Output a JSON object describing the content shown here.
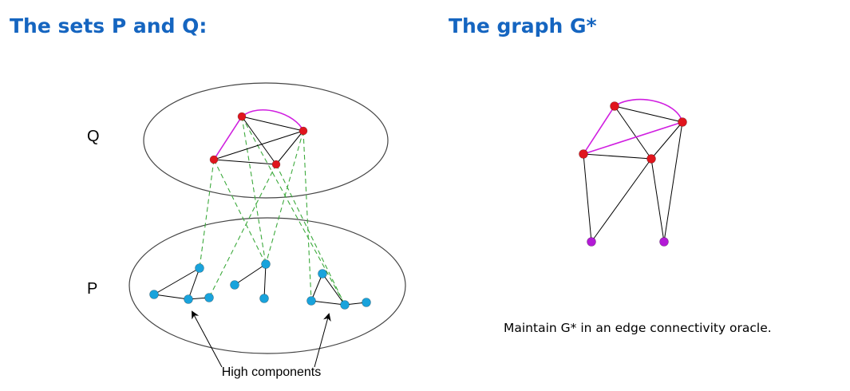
{
  "left_panel": {
    "title": "The sets P and Q:",
    "set_q_label": "Q",
    "set_p_label": "P",
    "annotation": "High components"
  },
  "right_panel": {
    "title": "The graph G*",
    "caption": "Maintain G* in an edge connectivity oracle."
  },
  "colors": {
    "title": "#1565c0",
    "q_node": "#e0151d",
    "p_node": "#19a3dc",
    "supernode": "#b31ad6",
    "magenta_edge": "#d01ee0",
    "dashed_edge": "#3daa3d",
    "black_edge": "#000000"
  },
  "diagram_left": {
    "q_nodes": [
      "q1",
      "q2",
      "q3",
      "q4"
    ],
    "q_edges": [
      [
        "q1",
        "q2"
      ],
      [
        "q1",
        "q3"
      ],
      [
        "q3",
        "q4"
      ],
      [
        "q1",
        "q4"
      ],
      [
        "q2",
        "q4"
      ],
      [
        "q2",
        "q3"
      ]
    ],
    "q_magenta_edges": [
      [
        "q1",
        "q2"
      ],
      [
        "q1",
        "q3"
      ]
    ],
    "p_nodes": [
      "p1",
      "p2",
      "p3",
      "p4",
      "p5",
      "p6",
      "p7",
      "p8",
      "p9",
      "p10",
      "p11"
    ],
    "p_edges": [
      [
        "p1",
        "p2"
      ],
      [
        "p1",
        "p3"
      ],
      [
        "p2",
        "p3"
      ],
      [
        "p3",
        "p4"
      ],
      [
        "p5",
        "p6"
      ],
      [
        "p6",
        "p7"
      ],
      [
        "p8",
        "p9"
      ],
      [
        "p8",
        "p10"
      ],
      [
        "p9",
        "p10"
      ],
      [
        "p10",
        "p11"
      ]
    ],
    "dashed_edges": [
      [
        "q3",
        "p1"
      ],
      [
        "q3",
        "p6"
      ],
      [
        "q1",
        "p6"
      ],
      [
        "q1",
        "p10"
      ],
      [
        "q2",
        "p6"
      ],
      [
        "q2",
        "p9"
      ],
      [
        "q4",
        "p4"
      ],
      [
        "q4",
        "p10"
      ]
    ]
  },
  "diagram_right": {
    "red_nodes": [
      "r1",
      "r2",
      "r3",
      "r4"
    ],
    "super_nodes": [
      "s1",
      "s2"
    ],
    "black_edges": [
      [
        "r1",
        "r2"
      ],
      [
        "r1",
        "r4"
      ],
      [
        "r2",
        "r4"
      ],
      [
        "r3",
        "r4"
      ],
      [
        "r3",
        "s1"
      ],
      [
        "r4",
        "s1"
      ],
      [
        "r4",
        "s2"
      ],
      [
        "r2",
        "s2"
      ]
    ],
    "magenta_edges": [
      [
        "r1",
        "r2"
      ],
      [
        "r1",
        "r3"
      ],
      [
        "r3",
        "r2"
      ]
    ]
  }
}
